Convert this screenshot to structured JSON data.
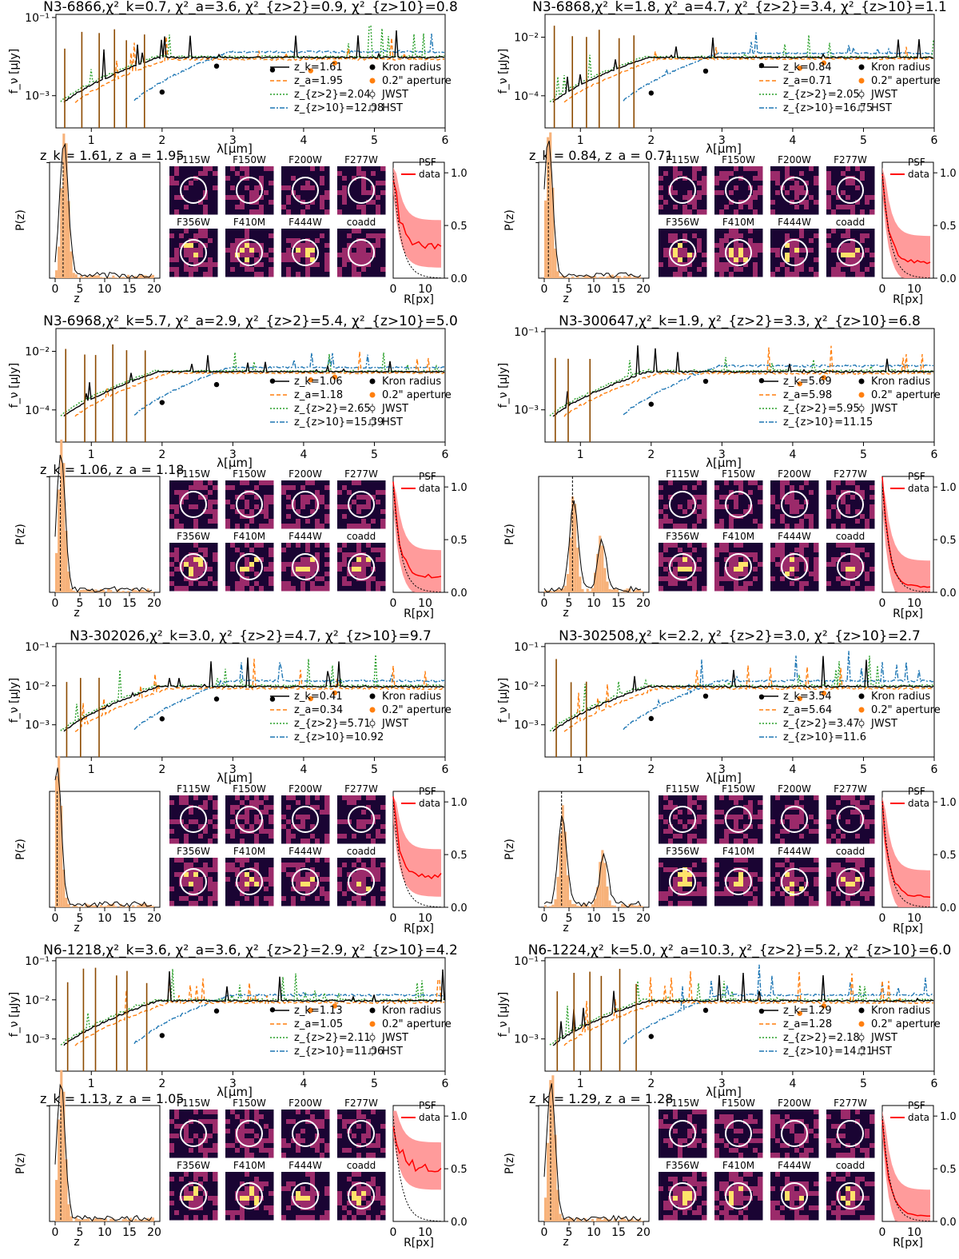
{
  "figure": {
    "common": {
      "sed_xlabel": "λ[μm]",
      "sed_ylabel": "f_ν [μJy]",
      "pz_ylabel": "P(z)",
      "pz_xlabel": "z",
      "prof_xlabel": "R[px]",
      "filters": [
        "F115W",
        "F150W",
        "F200W",
        "F277W",
        "F356W",
        "F410M",
        "F444W",
        "coadd"
      ],
      "legend_points": [
        "Kron radius",
        "0.2\" aperture",
        "JWST",
        "HST"
      ],
      "prof_legend": [
        "PSF",
        "data"
      ],
      "x_ticks": [
        "1",
        "2",
        "3",
        "4",
        "5",
        "6"
      ],
      "pz_ticks": [
        "0",
        "5",
        "10",
        "15",
        "20"
      ],
      "prof_xticks": [
        "0",
        "10"
      ],
      "prof_yticks": [
        "0.0",
        "0.5",
        "1.0"
      ]
    },
    "colors": {
      "kron": "#000000",
      "aperture": "#ff7f0e",
      "zgt2": "#2ca02c",
      "zgt10": "#1f77b4",
      "hst": "#8c4a00",
      "pz_hist": "#f7b27a",
      "profile": "#ff0000",
      "profile_band": "#ff8a8a",
      "stamp_dark": "#1a0433",
      "stamp_mid": "#9b2a6a",
      "stamp_bright": "#ffe36a"
    }
  },
  "chart_data": [
    {
      "type": "line",
      "object": "N3-6866",
      "title": "N3-6866,χ²_k=0.7, χ²_a=3.6, χ²_{z>2}=0.9, χ²_{z>10}=0.8",
      "legend": [
        "z_k=1.61",
        "z_a=1.95",
        "z_{z>2}=2.04",
        "z_{z>10}=12.08"
      ],
      "yticks": [
        "10⁻¹",
        "10⁻³"
      ],
      "ylim": [
        0.00015,
        0.12
      ],
      "xlim": [
        0.5,
        6
      ],
      "hst": true,
      "pz_title": "z_k = 1.61, z_a = 1.95",
      "pz_peaks": [
        1.6,
        1.9
      ],
      "profile_plateau": 0.3
    },
    {
      "type": "line",
      "object": "N3-6868",
      "title": "N3-6868,χ²_k=1.8, χ²_a=4.7, χ²_{z>2}=3.4, χ²_{z>10}=1.1",
      "legend": [
        "z_k=0.84",
        "z_a=0.71",
        "z_{z>2}=2.05",
        "z_{z>10}=16.75"
      ],
      "yticks": [
        "10⁻²",
        "10⁻⁴"
      ],
      "ylim": [
        8e-06,
        0.06
      ],
      "xlim": [
        0.5,
        6
      ],
      "hst": true,
      "pz_title": "z_k = 0.84, z_a = 0.71",
      "pz_peaks": [
        0.84,
        0.71
      ],
      "profile_plateau": 0.15
    },
    {
      "type": "line",
      "object": "N3-6968",
      "title": "N3-6968,χ²_k=5.7, χ²_a=2.9, χ²_{z>2}=5.4, χ²_{z>10}=5.0",
      "legend": [
        "z_k=1.06",
        "z_a=1.18",
        "z_{z>2}=2.65",
        "z_{z>10}=15.39"
      ],
      "yticks": [
        "10⁻²",
        "10⁻⁴"
      ],
      "ylim": [
        8e-06,
        0.06
      ],
      "xlim": [
        0.5,
        6
      ],
      "hst": true,
      "pz_title": "z_k = 1.06, z_a = 1.18",
      "pz_peaks": [
        1.06,
        1.18
      ],
      "profile_plateau": 0.15
    },
    {
      "type": "line",
      "object": "N3-300647",
      "title": "N3-300647,χ²_k=1.9, χ²_{z>2}=3.3, χ²_{z>10}=6.8",
      "legend": [
        "z_k=5.69",
        "z_a=5.98",
        "z_{z>2}=5.95",
        "z_{z>10}=11.15"
      ],
      "yticks": [
        "10⁻¹",
        "10⁻³"
      ],
      "ylim": [
        0.00015,
        0.12
      ],
      "xlim": [
        0.5,
        6
      ],
      "hst": false,
      "pz_title": "",
      "pz_peaks": [
        5.7,
        11.1
      ],
      "profile_plateau": 0.05
    },
    {
      "type": "line",
      "object": "N3-302026",
      "title": "N3-302026,χ²_k=3.0, χ²_{z>2}=4.7, χ²_{z>10}=9.7",
      "legend": [
        "z_k=0.41",
        "z_a=0.34",
        "z_{z>2}=5.71",
        "z_{z>10}=10.92"
      ],
      "yticks": [
        "10⁻¹",
        "10⁻²",
        "10⁻³"
      ],
      "ylim": [
        0.00015,
        0.12
      ],
      "xlim": [
        0.5,
        6
      ],
      "hst": false,
      "pz_title": "",
      "pz_peaks": [
        0.4,
        0.34
      ],
      "profile_plateau": 0.3
    },
    {
      "type": "line",
      "object": "N3-302508",
      "title": "N3-302508,χ²_k=2.2, χ²_{z>2}=3.0, χ²_{z>10}=2.7",
      "legend": [
        "z_k=3.54",
        "z_a=5.64",
        "z_{z>2}=3.47",
        "z_{z>10}=11.6"
      ],
      "yticks": [
        "10⁻¹",
        "10⁻²",
        "10⁻³"
      ],
      "ylim": [
        0.00015,
        0.12
      ],
      "xlim": [
        0.5,
        6
      ],
      "hst": false,
      "pz_title": "",
      "pz_peaks": [
        3.5,
        11.5
      ],
      "profile_plateau": 0.1
    },
    {
      "type": "line",
      "object": "N6-1218",
      "title": "N6-1218,χ²_k=3.6, χ²_a=3.6, χ²_{z>2}=2.9, χ²_{z>10}=4.2",
      "legend": [
        "z_k=1.13",
        "z_a=1.05",
        "z_{z>2}=2.11",
        "z_{z>10}=11.06"
      ],
      "yticks": [
        "10⁻¹",
        "10⁻²",
        "10⁻³"
      ],
      "ylim": [
        0.00015,
        0.12
      ],
      "xlim": [
        0.5,
        6
      ],
      "hst": true,
      "pz_title": "z_k = 1.13, z_a = 1.05",
      "pz_peaks": [
        1.13,
        1.05
      ],
      "profile_plateau": 0.5
    },
    {
      "type": "line",
      "object": "N6-1224",
      "title": "N6-1224,χ²_k=5.0, χ²_a=10.3, χ²_{z>2}=5.2, χ²_{z>10}=6.0",
      "legend": [
        "z_k=1.29",
        "z_a=1.28",
        "z_{z>2}=2.18",
        "z_{z>10}=14.21"
      ],
      "yticks": [
        "10⁻¹",
        "10⁻³"
      ],
      "ylim": [
        0.00015,
        0.12
      ],
      "xlim": [
        0.5,
        6
      ],
      "hst": true,
      "pz_title": "z_k = 1.29, z_a = 1.28",
      "pz_peaks": [
        1.29,
        1.28
      ],
      "profile_plateau": 0.05
    }
  ]
}
